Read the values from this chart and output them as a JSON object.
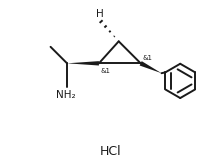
{
  "bg_color": "#ffffff",
  "line_color": "#1a1a1a",
  "line_width": 1.4,
  "label_H": "H",
  "label_NH2": "NH₂",
  "label_HCl": "HCl",
  "label_stereo1": "&1",
  "label_stereo2": "&1",
  "fig_width": 2.22,
  "fig_height": 1.64,
  "dpi": 100
}
